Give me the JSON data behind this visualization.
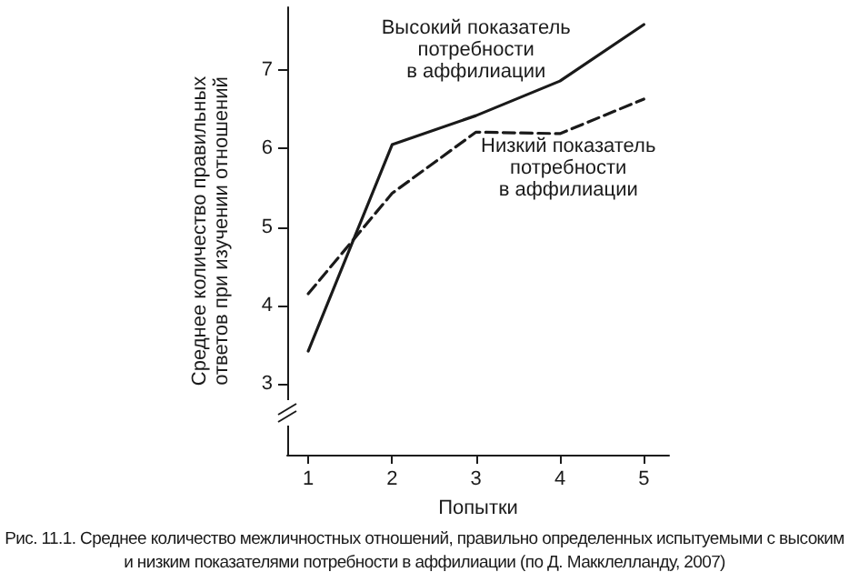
{
  "chart_data": {
    "type": "line",
    "xlabel": "Попытки",
    "ylabel": "Среднее количество правильных\nответов при изучении отношений",
    "x": [
      1,
      2,
      3,
      4,
      5
    ],
    "xlim": [
      0.75,
      5.3
    ],
    "xticks": [
      1,
      2,
      3,
      4,
      5
    ],
    "ylim": [
      2.1,
      7.8
    ],
    "yticks": [
      3,
      4,
      5,
      6,
      7
    ],
    "series": [
      {
        "name": "Высокий показатель\nпотребности\nв аффилиации",
        "color": "#1a1a1a",
        "line_style": "solid",
        "values": [
          3.42,
          6.05,
          6.42,
          6.86,
          7.58
        ]
      },
      {
        "name": "Низкий показатель\nпотребности\nв аффилиации",
        "color": "#1a1a1a",
        "line_style": "dashed",
        "values": [
          4.15,
          5.43,
          6.21,
          6.19,
          6.63
        ]
      }
    ],
    "grid": false,
    "legend": false,
    "marker": "none",
    "annotations": [
      "Рис. 11.1. Среднее количество межличностных отношений, правильно определенных испытуемыми с высоким и низким показателями потребности в аффилиации (по Д. Макклелланду, 2007)"
    ]
  }
}
